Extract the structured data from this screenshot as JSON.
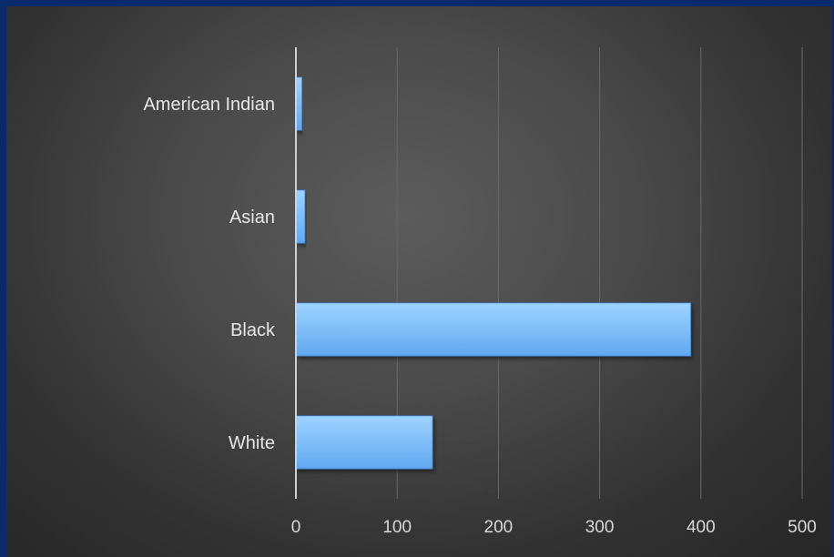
{
  "chart_data": {
    "type": "bar",
    "orientation": "horizontal",
    "categories": [
      "American Indian",
      "Asian",
      "Black",
      "White"
    ],
    "values": [
      6,
      9,
      390,
      135
    ],
    "xlim": [
      0,
      500
    ],
    "x_ticks": [
      0,
      100,
      200,
      300,
      400,
      500
    ],
    "title": "",
    "xlabel": "",
    "ylabel": "",
    "grid": "vertical",
    "legend": "none",
    "colors": {
      "bar_top": "#9fd2ff",
      "bar_bottom": "#5fa8f0",
      "bar_edge": "#3d7fc9",
      "grid": "#6a6a6a",
      "axis": "#d0d0d0",
      "frame": "#0b2a6b"
    }
  }
}
